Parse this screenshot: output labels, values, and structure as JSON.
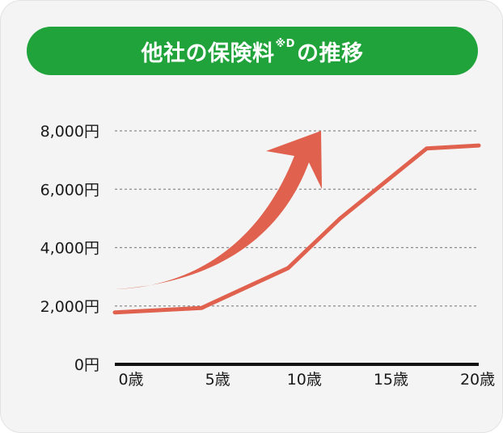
{
  "title": {
    "main": "他社の保険料",
    "sup": "※D",
    "suffix": "の推移"
  },
  "colors": {
    "pill": "#1fa33a",
    "line": "#e0614e",
    "arrow": "#e0614e",
    "grid": "#8a8a8a",
    "axis": "#111111"
  },
  "chart_data": {
    "type": "line",
    "title": "他社の保険料※Dの推移",
    "xlabel": "",
    "ylabel": "",
    "x_ticks": [
      {
        "value": 0,
        "label": "0歳"
      },
      {
        "value": 5,
        "label": "5歳"
      },
      {
        "value": 10,
        "label": "10歳"
      },
      {
        "value": 15,
        "label": "15歳"
      },
      {
        "value": 20,
        "label": "20歳"
      }
    ],
    "y_ticks": [
      {
        "value": 0,
        "label": "0円"
      },
      {
        "value": 2000,
        "label": "2,000円"
      },
      {
        "value": 4000,
        "label": "4,000円"
      },
      {
        "value": 6000,
        "label": "6,000円"
      },
      {
        "value": 8000,
        "label": "8,000円"
      }
    ],
    "xlim": [
      0,
      21
    ],
    "ylim": [
      0,
      8000
    ],
    "grid": true,
    "series": [
      {
        "values": [
          {
            "x": 0,
            "y": 1780
          },
          {
            "x": 5,
            "y": 1930
          },
          {
            "x": 10,
            "y": 3300
          },
          {
            "x": 13,
            "y": 5000
          },
          {
            "x": 18,
            "y": 7400
          },
          {
            "x": 21,
            "y": 7500
          }
        ]
      }
    ],
    "annotations": [
      {
        "type": "rising-arrow",
        "meaning": "increasing trend"
      }
    ]
  }
}
